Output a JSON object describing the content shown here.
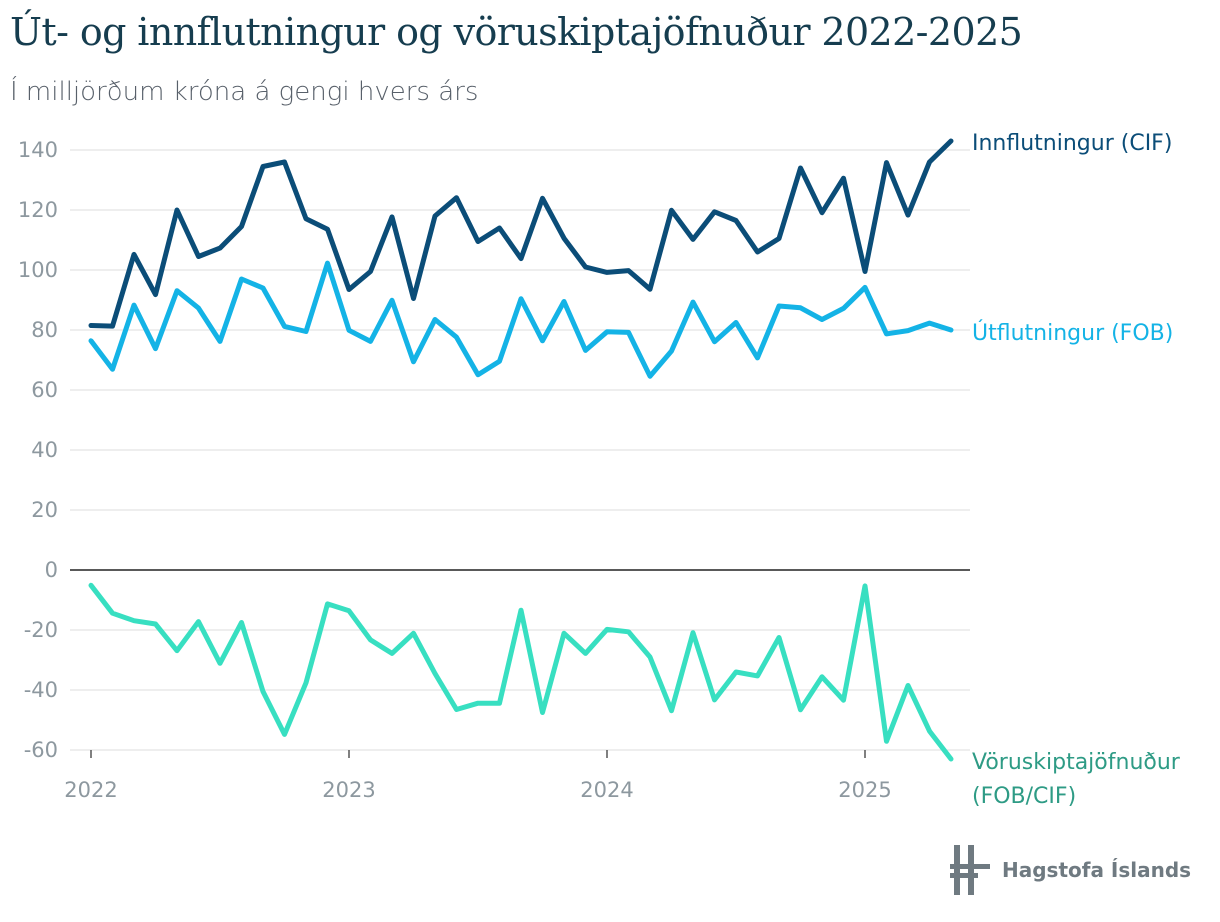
{
  "title": "Út- og innflutningur og vöruskiptajöfnuður 2022-2025",
  "subtitle": "Í milljörðum króna á gengi hvers árs",
  "logo": {
    "text": "Hagstofa Íslands",
    "icon": "hagstofa-logo-mark"
  },
  "chart_data": {
    "type": "line",
    "title": "Út- og innflutningur og vöruskiptajöfnuður 2022-2025",
    "subtitle": "Í milljörðum króna á gengi hvers árs",
    "xlabel": "",
    "ylabel": "",
    "ylim": [
      -60,
      140
    ],
    "yticks": [
      140,
      120,
      100,
      80,
      60,
      40,
      20,
      0,
      -20,
      -40,
      -60
    ],
    "xticks": [
      "2022",
      "2023",
      "2024",
      "2025"
    ],
    "grid": true,
    "legend": "inline labels at line ends (right)",
    "x_start": "2022-01",
    "x_frequency": "monthly",
    "series": [
      {
        "name": "Innflutningur (CIF)",
        "color": "#0b4d78",
        "values": [
          81.5,
          81.3,
          105.2,
          91.8,
          120.0,
          104.5,
          107.3,
          114.5,
          134.5,
          136.0,
          117.1,
          113.6,
          93.5,
          99.5,
          117.7,
          90.5,
          118.0,
          124.1,
          109.5,
          114.0,
          103.8,
          123.9,
          110.6,
          101.0,
          99.2,
          99.8,
          93.6,
          119.9,
          110.2,
          119.4,
          116.5,
          106.0,
          110.5,
          134.0,
          119.1,
          130.6,
          99.5,
          135.8,
          118.3,
          136.0,
          143.0
        ]
      },
      {
        "name": "Útflutningur (FOB)",
        "color": "#14b3e6",
        "values": [
          76.4,
          66.9,
          88.3,
          73.8,
          93.1,
          87.3,
          76.2,
          97.0,
          94.0,
          81.2,
          79.5,
          102.3,
          79.9,
          76.2,
          89.9,
          69.4,
          83.5,
          77.6,
          65.1,
          69.6,
          90.4,
          76.4,
          89.5,
          73.2,
          79.4,
          79.2,
          64.6,
          73.0,
          89.3,
          76.1,
          82.5,
          70.7,
          88.0,
          87.4,
          83.5,
          87.2,
          94.2,
          78.7,
          79.8,
          82.3,
          80.0
        ]
      },
      {
        "name": "Vöruskiptajöfnuður (FOB/CIF)",
        "color": "#38dfc1",
        "label_color": "#2e9b85",
        "values": [
          -5.1,
          -14.4,
          -16.9,
          -18.0,
          -26.9,
          -17.2,
          -31.1,
          -17.5,
          -40.5,
          -54.8,
          -37.6,
          -11.3,
          -13.6,
          -23.3,
          -27.8,
          -21.1,
          -34.5,
          -46.5,
          -44.4,
          -44.4,
          -13.4,
          -47.5,
          -21.1,
          -27.8,
          -19.8,
          -20.6,
          -29.0,
          -46.9,
          -20.9,
          -43.3,
          -34.0,
          -35.3,
          -22.5,
          -46.6,
          -35.6,
          -43.4,
          -5.3,
          -57.1,
          -38.5,
          -53.7,
          -63.0
        ]
      }
    ]
  }
}
